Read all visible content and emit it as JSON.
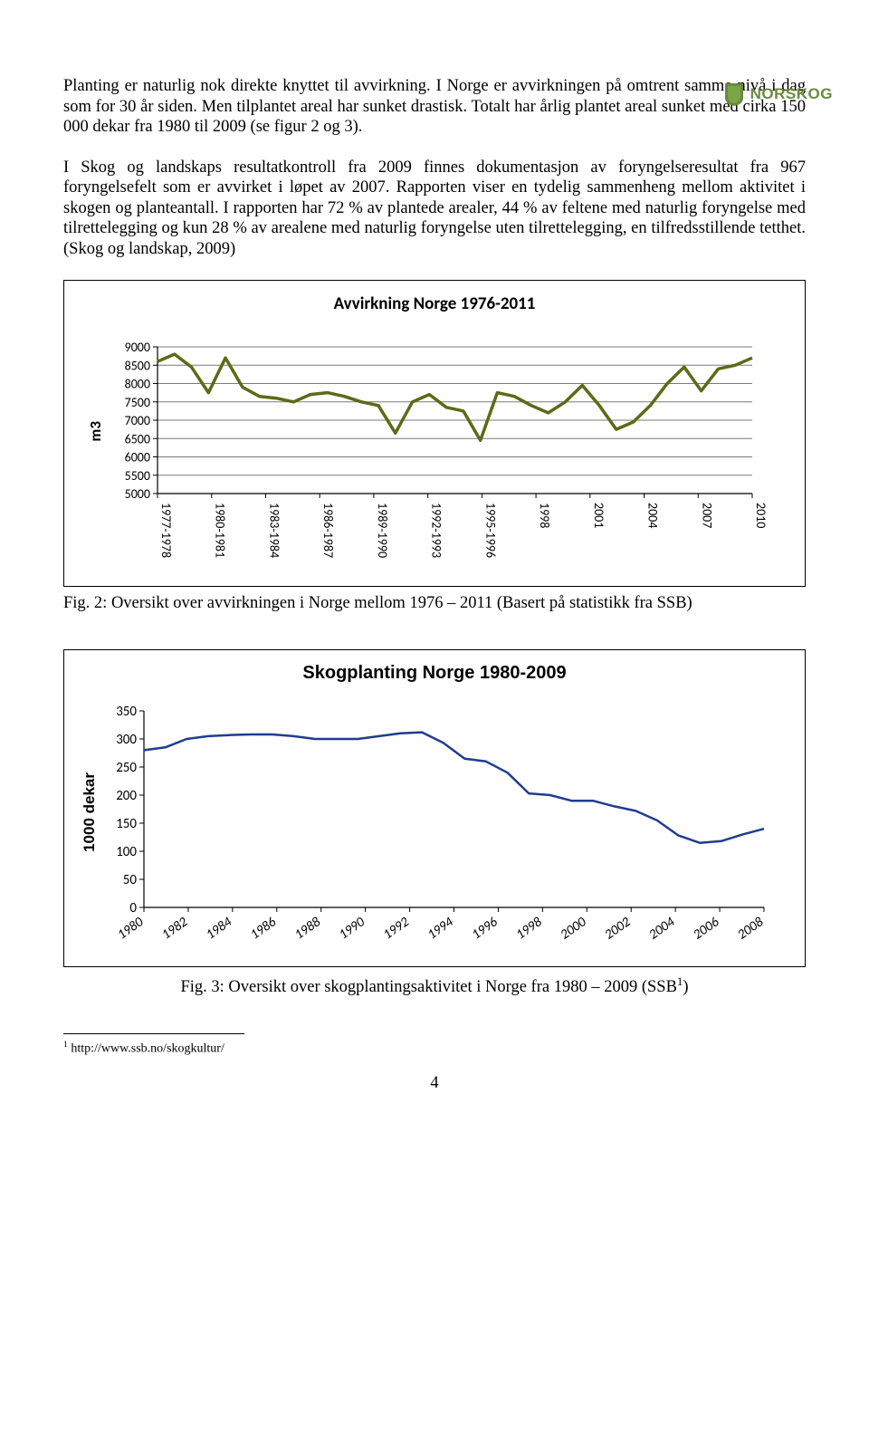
{
  "logo": {
    "text": "NORSKOG",
    "shield_outer": "#6a8a3f",
    "shield_inner": "#7aa648",
    "text_color": "#6a8a3f"
  },
  "paragraphs": {
    "p1": "Planting er naturlig nok direkte knyttet til avvirkning. I Norge er avvirkningen på omtrent samme nivå i dag som for 30 år siden. Men tilplantet areal har sunket drastisk. Totalt har årlig plantet areal sunket med cirka 150 000 dekar fra 1980 til 2009 (se figur 2 og 3).",
    "p2": "I Skog og landskaps resultatkontroll fra 2009 finnes dokumentasjon av foryngelseresultat fra 967 foryngelsefelt som er avvirket i løpet av 2007. Rapporten viser en tydelig sammenheng mellom aktivitet i skogen og planteantall. I rapporten har 72 % av plantede arealer, 44 % av feltene med naturlig foryngelse med tilrettelegging og kun 28 % av arealene med naturlig foryngelse uten tilrettelegging, en tilfredsstillende tetthet. (Skog og landskap, 2009)"
  },
  "chart1": {
    "title": "Avvirkning Norge 1976-2011",
    "ylabel": "m3",
    "ylim": [
      5000,
      9000
    ],
    "ytick_step": 500,
    "yticks": [
      "9000",
      "8500",
      "8000",
      "7500",
      "7000",
      "6500",
      "6000",
      "5500",
      "5000"
    ],
    "xticks": [
      "1977-1978",
      "1980-1981",
      "1983-1984",
      "1986-1987",
      "1989-1990",
      "1992-1993",
      "1995-1996",
      "1998",
      "2001",
      "2004",
      "2007",
      "2010"
    ],
    "values": [
      8600,
      8800,
      8450,
      7750,
      8700,
      7900,
      7650,
      7600,
      7500,
      7700,
      7750,
      7650,
      7500,
      7400,
      6650,
      7500,
      7700,
      7350,
      7250,
      6450,
      7750,
      7650,
      7400,
      7200,
      7500,
      7950,
      7400,
      6750,
      6950,
      7400,
      8000,
      8450,
      7800,
      8400,
      8500,
      8700
    ],
    "line_color": "#5d6a17",
    "line_width": 3.5,
    "grid_color": "#7a7a7a",
    "tick_font_size": 14,
    "plot_bg": "#ffffff"
  },
  "fig2_caption": "Fig. 2: Oversikt over avvirkningen i Norge mellom 1976 – 2011 (Basert på statistikk fra SSB)",
  "chart2": {
    "title": "Skogplanting Norge 1980-2009",
    "ylabel": "1000 dekar",
    "ylim": [
      0,
      350
    ],
    "ytick_step": 50,
    "yticks": [
      "350",
      "300",
      "250",
      "200",
      "150",
      "100",
      "50",
      "0"
    ],
    "xticks": [
      "1980",
      "1982",
      "1984",
      "1986",
      "1988",
      "1990",
      "1992",
      "1994",
      "1996",
      "1998",
      "2000",
      "2002",
      "2004",
      "2006",
      "2008"
    ],
    "values": [
      280,
      285,
      300,
      305,
      307,
      308,
      308,
      305,
      300,
      300,
      300,
      305,
      310,
      312,
      293,
      265,
      260,
      240,
      203,
      200,
      190,
      190,
      180,
      172,
      155,
      128,
      115,
      118,
      130,
      140
    ],
    "line_color": "#1f3d8f",
    "line_width": 2.5,
    "grid_color": "#000000",
    "tick_font_size": 15,
    "plot_bg": "#ffffff"
  },
  "fig3_caption_pre": "Fig. 3: Oversikt over skogplantingsaktivitet i Norge fra 1980 – 2009 (SSB",
  "fig3_caption_sup": "1",
  "fig3_caption_post": ")",
  "footnote": {
    "marker": "1",
    "text": " http://www.ssb.no/skogkultur/"
  },
  "page_number": "4"
}
